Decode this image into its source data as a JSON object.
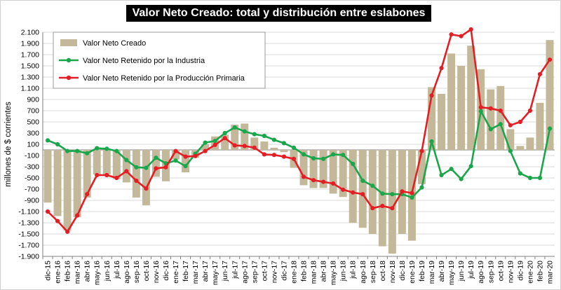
{
  "chart_data": {
    "type": "bar",
    "title": "Valor Neto Creado: total y distribución entre eslabones",
    "ylabel": "millones de $ corrientes",
    "xlabel": "",
    "ylim": [
      -1900,
      2100
    ],
    "yticks": [
      -1900,
      -1700,
      -1500,
      -1300,
      -1100,
      -900,
      -700,
      -500,
      -300,
      -100,
      100,
      300,
      500,
      700,
      900,
      1100,
      1300,
      1500,
      1700,
      1900,
      2100
    ],
    "ytick_labels": [
      "-1.900",
      "-1.700",
      "-1.500",
      "-1.300",
      "-1.100",
      "-900",
      "-700",
      "-500",
      "-300",
      "-100",
      "100",
      "300",
      "500",
      "700",
      "900",
      "1.100",
      "1.300",
      "1.500",
      "1.700",
      "1.900",
      "2.100"
    ],
    "grid": "horizontal",
    "legend_position": "top-left",
    "categories": [
      "dic-15",
      "ene-16",
      "feb-16",
      "mar-16",
      "abr-16",
      "may-16",
      "jun-16",
      "jul-16",
      "ago-16",
      "sep-16",
      "oct-16",
      "nov-16",
      "dic-16",
      "ene-17",
      "feb-17",
      "mar-17",
      "abr-17",
      "may-17",
      "jun-17",
      "jul-17",
      "ago-17",
      "sep-17",
      "oct-17",
      "nov-17",
      "dic-17",
      "ene-18",
      "feb-18",
      "mar-18",
      "abr-18",
      "may-18",
      "jun-18",
      "jul-18",
      "ago-18",
      "sep-18",
      "oct-18",
      "nov-18",
      "dic-18",
      "ene-19",
      "feb-19",
      "mar-19",
      "abr-19",
      "may-19",
      "jun-19",
      "jul-19",
      "ago-19",
      "sep-19",
      "oct-19",
      "nov-19",
      "dic-19",
      "ene-20",
      "feb-20",
      "mar-20"
    ],
    "series": [
      {
        "name": "Valor Neto Creado",
        "kind": "bar",
        "color": "#c4b89a",
        "values": [
          -940,
          -1180,
          -1440,
          -1200,
          -850,
          -440,
          -440,
          -520,
          -580,
          -850,
          -990,
          -480,
          -560,
          -170,
          -400,
          -140,
          100,
          240,
          270,
          450,
          470,
          220,
          150,
          40,
          -40,
          -320,
          -630,
          -680,
          -680,
          -780,
          -840,
          -1300,
          -1390,
          -1500,
          -1720,
          -1850,
          -1500,
          -1620,
          -610,
          1120,
          1000,
          1720,
          1500,
          1860,
          1440,
          1080,
          1140,
          370,
          70,
          220,
          840,
          1960
        ]
      },
      {
        "name": "Valor Neto Retenido por la Industria",
        "kind": "line",
        "color": "#1aa64a",
        "values": [
          170,
          100,
          -20,
          -20,
          -60,
          30,
          20,
          -20,
          -180,
          -310,
          -320,
          -140,
          -240,
          -190,
          -290,
          -70,
          130,
          160,
          300,
          400,
          330,
          280,
          250,
          180,
          120,
          40,
          -80,
          -150,
          -160,
          -80,
          -90,
          -250,
          -550,
          -640,
          -780,
          -790,
          -790,
          -850,
          -670,
          150,
          -450,
          -340,
          -520,
          -290,
          690,
          370,
          460,
          -20,
          -420,
          -500,
          -500,
          380
        ]
      },
      {
        "name": "Valor Neto Retenido por la Producción Primaria",
        "kind": "line",
        "color": "#e31e24",
        "values": [
          -1100,
          -1270,
          -1460,
          -1170,
          -790,
          -450,
          -450,
          -500,
          -380,
          -550,
          -690,
          -330,
          -310,
          -20,
          -120,
          -110,
          -20,
          90,
          210,
          80,
          70,
          40,
          -80,
          -90,
          -120,
          -160,
          -480,
          -540,
          -570,
          -600,
          -710,
          -760,
          -790,
          -1040,
          -1000,
          -1040,
          -740,
          -770,
          -20,
          970,
          1460,
          2060,
          2030,
          2150,
          760,
          740,
          700,
          440,
          500,
          700,
          1350,
          1610
        ]
      }
    ]
  }
}
